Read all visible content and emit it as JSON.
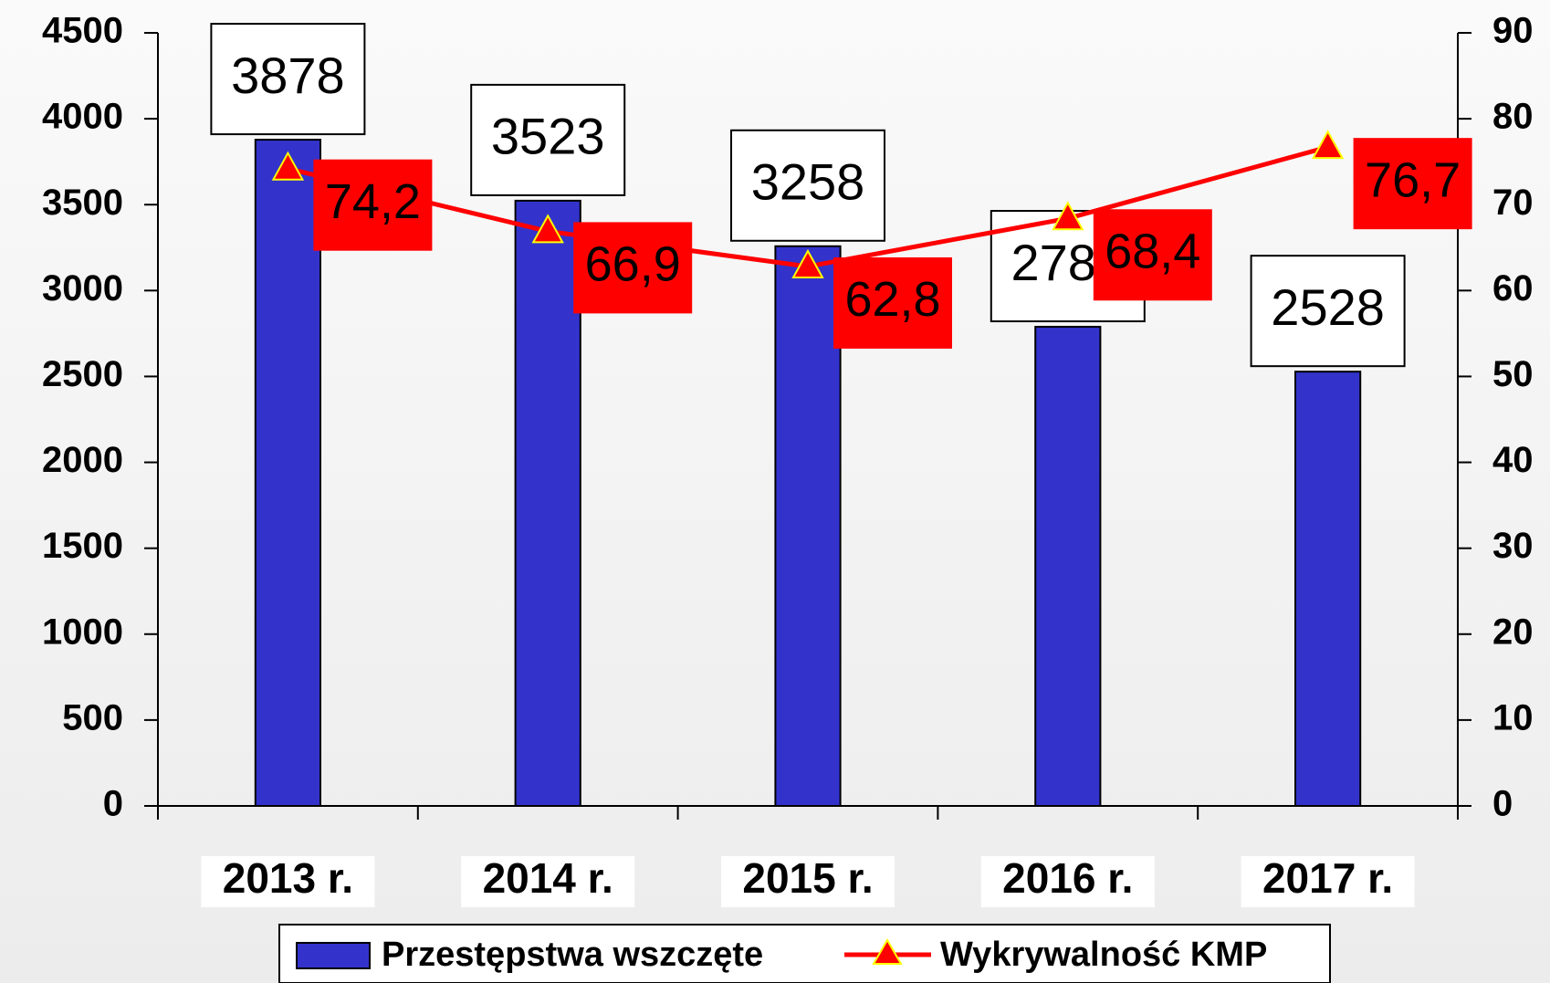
{
  "chart_data": {
    "type": "bar",
    "categories": [
      "2013 r.",
      "2014 r.",
      "2015 r.",
      "2016 r.",
      "2017 r."
    ],
    "series": [
      {
        "name": "Przestępstwa wszczęte",
        "type": "bar",
        "color": "#3333cc",
        "values": [
          3878,
          3523,
          3258,
          2789,
          2528
        ]
      },
      {
        "name": "Wykrywalność KMP",
        "type": "line",
        "axis": "y2",
        "color": "#ff0000",
        "values": [
          74.2,
          66.9,
          62.8,
          68.4,
          76.7
        ],
        "value_labels": [
          "74,2",
          "66,9",
          "62,8",
          "68,4",
          "76,7"
        ]
      }
    ],
    "ylim": [
      0,
      4500
    ],
    "yticks": [
      0,
      500,
      1000,
      1500,
      2000,
      2500,
      3000,
      3500,
      4000,
      4500
    ],
    "y2lim": [
      0,
      90
    ],
    "y2ticks": [
      0,
      10,
      20,
      30,
      40,
      50,
      60,
      70,
      80,
      90
    ],
    "grid": false,
    "legend": "bottom"
  }
}
